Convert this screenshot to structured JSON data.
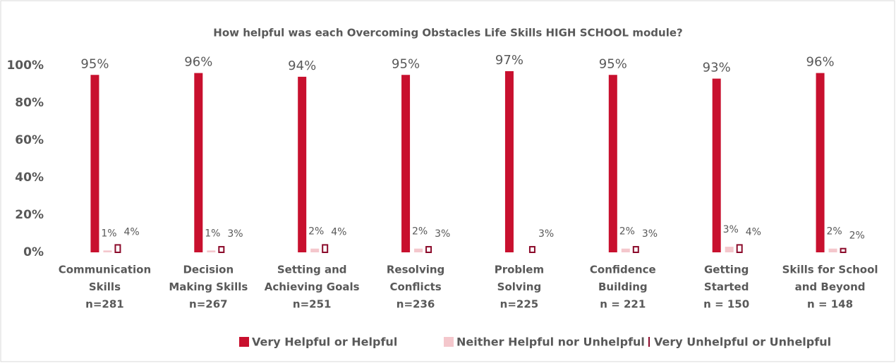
{
  "chart_data": {
    "type": "bar",
    "title": "How helpful was each Overcoming Obstacles Life Skills HIGH SCHOOL module?",
    "categories": [
      [
        "Communication",
        "Skills",
        "n=281"
      ],
      [
        "Decision",
        "Making Skills",
        "n=267"
      ],
      [
        "Setting and",
        "Achieving Goals",
        "n=251"
      ],
      [
        "Resolving",
        "Conflicts",
        "n=236"
      ],
      [
        "Problem",
        "Solving",
        "n=225"
      ],
      [
        "Confidence",
        "Building",
        "n = 221"
      ],
      [
        "Getting",
        "Started",
        "n = 150"
      ],
      [
        "Skills for School",
        "and Beyond",
        "n = 148"
      ]
    ],
    "series": [
      {
        "name": "Very Helpful or Helpful",
        "color": "#c8102e",
        "values": [
          95,
          96,
          94,
          95,
          97,
          95,
          93,
          96
        ],
        "value_labels": [
          "95%",
          "96%",
          "94%",
          "95%",
          "97%",
          "95%",
          "93%",
          "96%"
        ]
      },
      {
        "name": "Neither Helpful nor Unhelpful",
        "color": "#f4c7cc",
        "values": [
          1,
          1,
          2,
          2,
          null,
          2,
          3,
          2
        ],
        "value_labels": [
          "1%",
          "1%",
          "2%",
          "2%",
          null,
          "2%",
          "3%",
          "2%"
        ]
      },
      {
        "name": "Very Unhelpful or Unhelpful",
        "color": "#8b0a2a",
        "values": [
          4,
          3,
          4,
          3,
          3,
          3,
          4,
          2
        ],
        "value_labels": [
          "4%",
          "3%",
          "4%",
          "3%",
          "3%",
          "3%",
          "4%",
          "2%"
        ]
      }
    ],
    "ylim": [
      0,
      100
    ],
    "yticks": [
      {
        "value": 0,
        "label": "0%"
      },
      {
        "value": 20,
        "label": "20%"
      },
      {
        "value": 40,
        "label": "40%"
      },
      {
        "value": 60,
        "label": "60%"
      },
      {
        "value": 80,
        "label": "80%"
      },
      {
        "value": 100,
        "label": "100%"
      }
    ],
    "grid": false
  }
}
